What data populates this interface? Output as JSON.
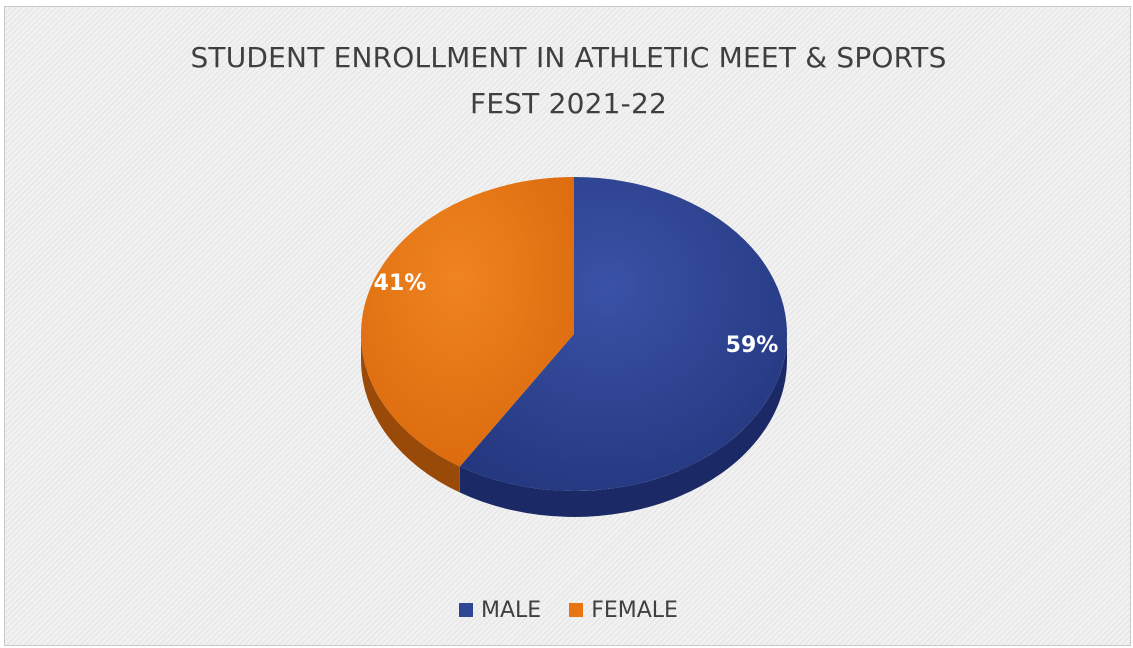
{
  "chart_data": {
    "type": "pie",
    "title_lines": [
      "STUDENT ENROLLMENT IN ATHLETIC MEET & SPORTS",
      "FEST 2021-22"
    ],
    "categories": [
      "MALE",
      "FEMALE"
    ],
    "values": [
      59,
      41
    ],
    "data_labels": [
      "59%",
      "41%"
    ],
    "colors": [
      "#2f4696",
      "#e87512"
    ],
    "side_colors": [
      "#1b2a66",
      "#9a4a08"
    ],
    "legend_placement": "bottom",
    "style": "3d"
  }
}
